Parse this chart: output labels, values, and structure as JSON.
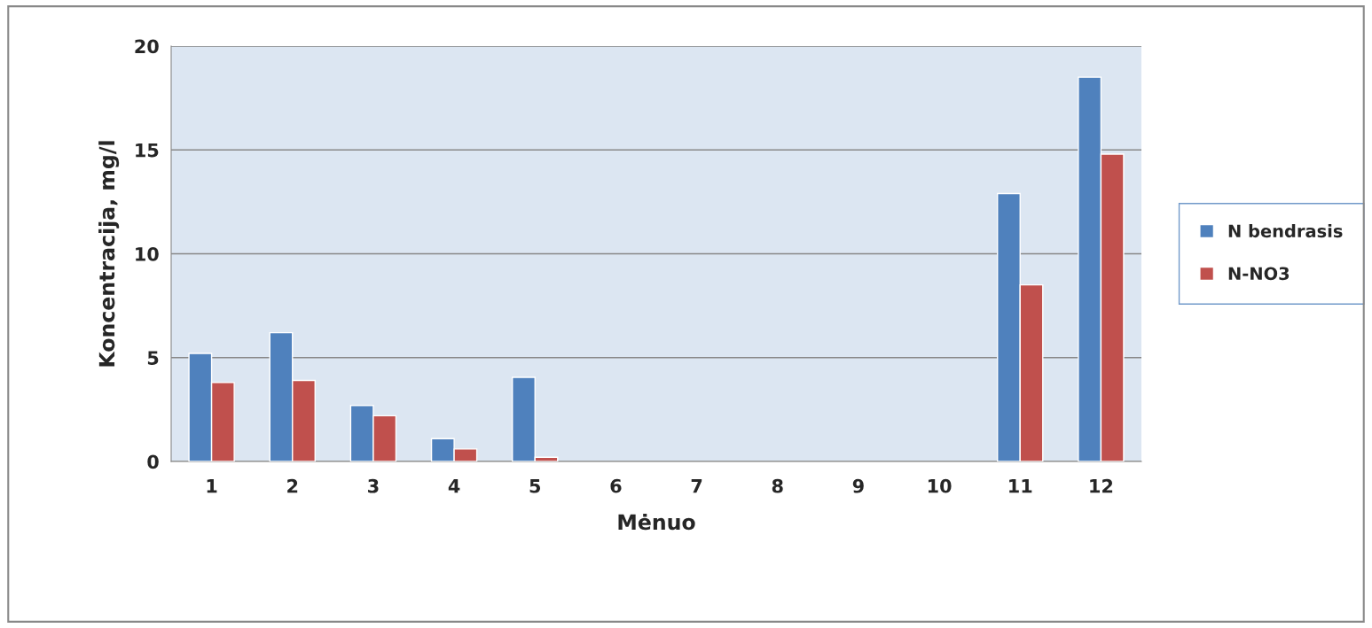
{
  "chart_data": {
    "type": "bar",
    "xlabel": "Mėnuo",
    "ylabel": "Koncentracija, mg/l",
    "categories": [
      "1",
      "2",
      "3",
      "4",
      "5",
      "6",
      "7",
      "8",
      "9",
      "10",
      "11",
      "12"
    ],
    "series": [
      {
        "name": "N bendrasis",
        "color": "#4f81bd",
        "values": [
          5.2,
          6.2,
          2.7,
          1.1,
          4.05,
          null,
          null,
          null,
          null,
          null,
          12.9,
          18.5
        ]
      },
      {
        "name": "N-NO3",
        "color": "#c0504d",
        "values": [
          3.8,
          3.9,
          2.2,
          0.6,
          0.2,
          null,
          null,
          null,
          null,
          null,
          8.5,
          14.8
        ]
      }
    ],
    "ylim": [
      0,
      20
    ],
    "yticks": [
      0,
      5,
      10,
      15,
      20
    ],
    "grid": "y",
    "legend": "right"
  }
}
